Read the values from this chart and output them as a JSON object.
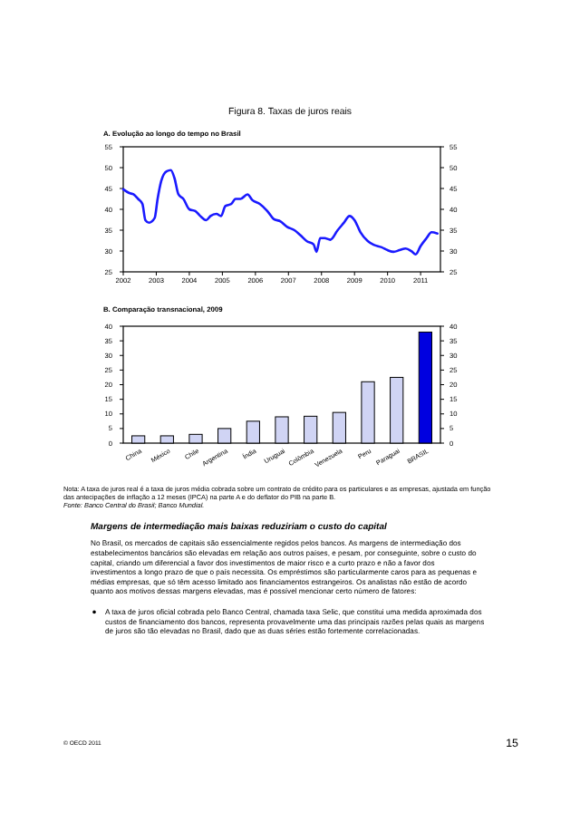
{
  "chart_data": [
    {
      "type": "line",
      "title": "Figura 8. Taxas de juros reais",
      "subtitle": "A. Evolução ao longo do tempo no Brasil",
      "color": "#1a1aff",
      "x": [
        2002.0,
        2002.18,
        2002.31,
        2002.45,
        2002.58,
        2002.67,
        2002.78,
        2002.95,
        2003.04,
        2003.15,
        2003.31,
        2003.44,
        2003.55,
        2003.67,
        2003.82,
        2004.0,
        2004.18,
        2004.33,
        2004.51,
        2004.64,
        2004.82,
        2004.96,
        2005.09,
        2005.27,
        2005.4,
        2005.55,
        2005.76,
        2005.91,
        2006.13,
        2006.36,
        2006.55,
        2006.76,
        2006.96,
        2007.18,
        2007.36,
        2007.55,
        2007.76,
        2007.85,
        2007.96,
        2008.09,
        2008.27,
        2008.49,
        2008.67,
        2008.85,
        2009.0,
        2009.18,
        2009.4,
        2009.58,
        2009.82,
        2010.0,
        2010.18,
        2010.36,
        2010.55,
        2010.73,
        2010.85,
        2011.0,
        2011.18,
        2011.33,
        2011.51
      ],
      "values": [
        44.8,
        43.9,
        43.6,
        42.5,
        41.3,
        37.4,
        36.8,
        37.9,
        42.5,
        46.8,
        49.1,
        49.4,
        47.5,
        43.6,
        42.5,
        40.0,
        39.6,
        38.4,
        37.4,
        38.4,
        38.9,
        38.4,
        40.8,
        41.3,
        42.5,
        42.5,
        43.6,
        42.2,
        41.3,
        39.6,
        37.7,
        37.1,
        35.8,
        35.0,
        33.8,
        32.4,
        31.6,
        29.8,
        33.1,
        33.1,
        32.7,
        35.0,
        36.7,
        38.4,
        37.4,
        34.5,
        32.4,
        31.5,
        30.9,
        30.2,
        29.8,
        30.2,
        30.6,
        29.9,
        29.2,
        31.2,
        33.1,
        34.5,
        34.2
      ],
      "xlim": [
        2002,
        2011.6
      ],
      "xticks": [
        2002,
        2003,
        2004,
        2005,
        2006,
        2007,
        2008,
        2009,
        2010,
        2011
      ],
      "ylim": [
        25,
        55
      ],
      "yticks": [
        25,
        30,
        35,
        40,
        45,
        50,
        55
      ],
      "y2lim": [
        25,
        55
      ],
      "y2ticks": [
        25,
        30,
        35,
        40,
        45,
        50,
        55
      ],
      "marker": "none",
      "line_style": "solid",
      "grid": false
    },
    {
      "type": "bar",
      "title": "B. Comparação transnacional, 2009",
      "categories": [
        "China",
        "México",
        "Chile",
        "Argentina",
        "Índia",
        "Uruguai",
        "Colômbia",
        "Venezuela",
        "Peru",
        "Paraguai",
        "BRASIL"
      ],
      "values": [
        2.5,
        2.5,
        3,
        5,
        7.5,
        9,
        9.2,
        10.5,
        21,
        22.5,
        38
      ],
      "colors": [
        "#d0d4f4",
        "#d0d4f4",
        "#d0d4f4",
        "#d0d4f4",
        "#d0d4f4",
        "#d0d4f4",
        "#d0d4f4",
        "#d0d4f4",
        "#d0d4f4",
        "#d0d4f4",
        "#0000e0"
      ],
      "ylim": [
        0,
        40
      ],
      "yticks": [
        0,
        5,
        10,
        15,
        20,
        25,
        30,
        35,
        40
      ],
      "y2lim": [
        0,
        40
      ],
      "y2ticks": [
        0,
        5,
        10,
        15,
        20,
        25,
        30,
        35,
        40
      ],
      "grid": false,
      "annotations": [
        "Nota: A taxa de juros real é a taxa de juros média cobrada sobre um contrato de crédito para os particulares e as empresas, ajustada em função das antecipações de inflação a 12 meses (IPCA) na parte A e do deflator do PIB na parte B.",
        "Fonte: Banco Central do Brasil; Banco Mundial.",
        "Margens de intermediação mais baixas reduziriam o custo do capital",
        "No Brasil, os mercados de capitais são essencialmente regidos pelos bancos. As margens de intermediação dos estabelecimentos bancários são elevadas em relação aos outros países, e pesam, por conseguinte, sobre o custo do capital, criando um diferencial a favor dos investimentos de maior risco e a curto prazo e não a favor dos investimentos a longo prazo de que o país necessita. Os empréstimos são particularmente caros para as pequenas e médias empresas, que só têm acesso limitado aos financiamentos estrangeiros. Os analistas não estão de acordo quanto aos motivos dessas margens elevadas, mas é possível mencionar certo número de fatores:",
        "A taxa de juros oficial cobrada pelo Banco Central, chamada taxa Selic, que constitui uma medida aproximada dos custos de financiamento dos bancos, representa provavelmente uma das principais razões pelas quais as margens de juros são tão elevadas no Brasil, dado que as duas séries estão fortemente correlacionadas.",
        "© OECD 2011",
        "15"
      ]
    }
  ]
}
